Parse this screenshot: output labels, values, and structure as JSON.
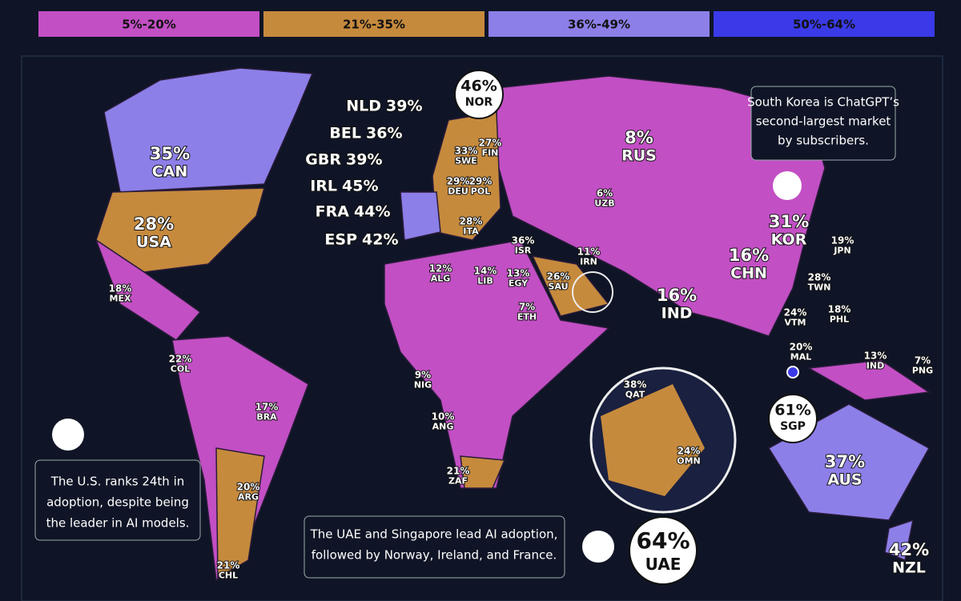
{
  "legend": [
    "5%-20%",
    "21%-35%",
    "36%-49%",
    "50%-64%"
  ],
  "countries": [
    {
      "code": "NOR",
      "percent": "46%"
    },
    {
      "code": "NLD",
      "percent": "39%"
    },
    {
      "code": "BEL",
      "percent": "36%"
    },
    {
      "code": "GBR",
      "percent": "39%"
    },
    {
      "code": "IRL",
      "percent": "45%"
    },
    {
      "code": "FRA",
      "percent": "44%"
    },
    {
      "code": "ESP",
      "percent": "42%"
    },
    {
      "code": "CAN",
      "percent": "35%"
    },
    {
      "code": "USA",
      "percent": "28%"
    },
    {
      "code": "MEX",
      "percent": "18%"
    },
    {
      "code": "COL",
      "percent": "22%"
    },
    {
      "code": "BRA",
      "percent": "17%"
    },
    {
      "code": "ARG",
      "percent": "20%"
    },
    {
      "code": "CHL",
      "percent": "21%"
    },
    {
      "code": "SWE",
      "percent": "33%"
    },
    {
      "code": "FIN",
      "percent": "27%"
    },
    {
      "code": "DEU",
      "percent": "29%"
    },
    {
      "code": "POL",
      "percent": "29%"
    },
    {
      "code": "ITA",
      "percent": "28%"
    },
    {
      "code": "RUS",
      "percent": "8%"
    },
    {
      "code": "UZB",
      "percent": "6%"
    },
    {
      "code": "KOR",
      "percent": "31%"
    },
    {
      "code": "JPN",
      "percent": "19%"
    },
    {
      "code": "CHN",
      "percent": "16%"
    },
    {
      "code": "TWN",
      "percent": "28%"
    },
    {
      "code": "IND",
      "percent": "16%"
    },
    {
      "code": "ISR",
      "percent": "36%"
    },
    {
      "code": "IRN",
      "percent": "11%"
    },
    {
      "code": "ALG",
      "percent": "12%"
    },
    {
      "code": "LIB",
      "percent": "14%"
    },
    {
      "code": "EGY",
      "percent": "13%"
    },
    {
      "code": "SAU",
      "percent": "26%"
    },
    {
      "code": "ETH",
      "percent": "7%"
    },
    {
      "code": "VTM",
      "percent": "24%"
    },
    {
      "code": "PHL",
      "percent": "18%"
    },
    {
      "code": "MAL",
      "percent": "20%"
    },
    {
      "code": "IND",
      "percent": "13%"
    },
    {
      "code": "PNG",
      "percent": "7%"
    },
    {
      "code": "NIG",
      "percent": "9%"
    },
    {
      "code": "ANG",
      "percent": "10%"
    },
    {
      "code": "ZAF",
      "percent": "21%"
    },
    {
      "code": "QAT",
      "percent": "38%"
    },
    {
      "code": "OMN",
      "percent": "24%"
    },
    {
      "code": "SGP",
      "percent": "61%"
    },
    {
      "code": "AUS",
      "percent": "37%"
    },
    {
      "code": "NZL",
      "percent": "42%"
    },
    {
      "code": "UAE",
      "percent": "64%"
    }
  ],
  "callouts": {
    "korea": [
      "South Korea is ChatGPT’s",
      "second-largest market",
      "by subscribers."
    ],
    "usa": [
      "The U.S. ranks 24th in",
      "adoption, despite being",
      "the leader in AI models."
    ],
    "uae": [
      "The UAE and Singapore lead AI adoption,",
      "followed by Norway, Ireland, and France."
    ]
  }
}
